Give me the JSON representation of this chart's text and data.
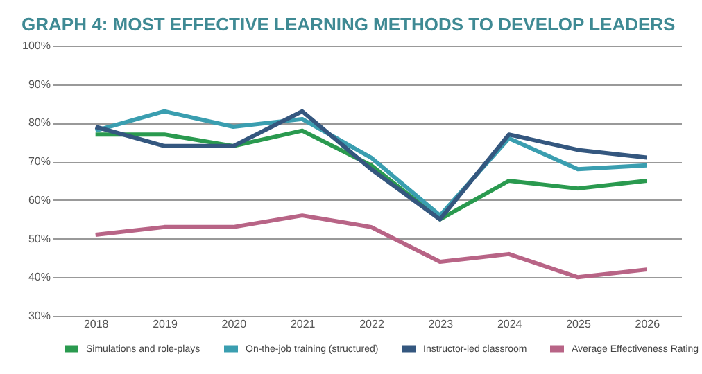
{
  "chart_data": {
    "type": "line",
    "title": "GRAPH 4: MOST EFFECTIVE LEARNING METHODS TO DEVELOP LEADERS",
    "categories": [
      "2018",
      "2019",
      "2020",
      "2021",
      "2022",
      "2023",
      "2024",
      "2025",
      "2026"
    ],
    "series": [
      {
        "name": "Simulations and role-plays",
        "color": "#2a9a4f",
        "values": [
          77,
          77,
          74,
          78,
          69,
          55,
          65,
          63,
          65
        ]
      },
      {
        "name": "On-the-job training (structured)",
        "color": "#3a9eb0",
        "values": [
          78,
          83,
          79,
          81,
          71,
          56,
          76,
          68,
          69
        ]
      },
      {
        "name": "Instructor-led classroom",
        "color": "#34577f",
        "values": [
          79,
          74,
          74,
          83,
          68,
          55,
          77,
          73,
          71
        ]
      },
      {
        "name": "Average Effectiveness Rating",
        "color": "#b86486",
        "values": [
          51,
          53,
          53,
          56,
          53,
          44,
          46,
          40,
          42
        ]
      }
    ],
    "ylim": [
      30,
      100
    ],
    "yticks": [
      {
        "value": 30,
        "label": "30%"
      },
      {
        "value": 40,
        "label": "40%"
      },
      {
        "value": 50,
        "label": "50%"
      },
      {
        "value": 60,
        "label": "60%"
      },
      {
        "value": 70,
        "label": "70%"
      },
      {
        "value": 80,
        "label": "80%"
      },
      {
        "value": 90,
        "label": "90%"
      },
      {
        "value": 100,
        "label": "100%"
      }
    ],
    "grid": "y",
    "legend": "bottom",
    "marker": "none",
    "line_style": "solid"
  }
}
